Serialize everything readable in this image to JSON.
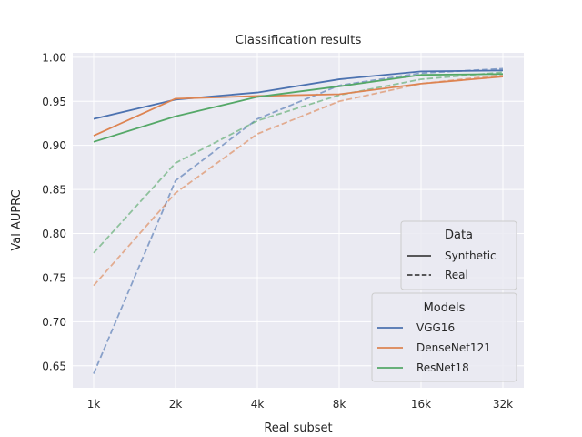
{
  "chart_data": {
    "type": "line",
    "title": "Classification results",
    "xlabel": "Real subset",
    "ylabel": "Val AUPRC",
    "categories": [
      "1k",
      "2k",
      "4k",
      "8k",
      "16k",
      "32k"
    ],
    "ylim": [
      0.625,
      1.005
    ],
    "yticks": [
      0.65,
      0.7,
      0.75,
      0.8,
      0.85,
      0.9,
      0.95,
      1.0
    ],
    "ytick_labels": [
      "0.65",
      "0.70",
      "0.75",
      "0.80",
      "0.85",
      "0.90",
      "0.95",
      "1.00"
    ],
    "grid": true,
    "series": [
      {
        "name": "VGG16",
        "data": "Synthetic",
        "color": "#4c72b0",
        "dashed": false,
        "values": [
          0.93,
          0.952,
          0.96,
          0.975,
          0.984,
          0.985
        ]
      },
      {
        "name": "DenseNet121",
        "data": "Synthetic",
        "color": "#dd8452",
        "dashed": false,
        "values": [
          0.911,
          0.953,
          0.956,
          0.958,
          0.97,
          0.978
        ]
      },
      {
        "name": "ResNet18",
        "data": "Synthetic",
        "color": "#55a868",
        "dashed": false,
        "values": [
          0.904,
          0.933,
          0.955,
          0.967,
          0.98,
          0.981
        ]
      },
      {
        "name": "VGG16",
        "data": "Real",
        "color": "#4c72b0",
        "dashed": true,
        "values": [
          0.641,
          0.86,
          0.93,
          0.968,
          0.982,
          0.987
        ]
      },
      {
        "name": "DenseNet121",
        "data": "Real",
        "color": "#dd8452",
        "dashed": true,
        "values": [
          0.741,
          0.846,
          0.913,
          0.95,
          0.97,
          0.98
        ]
      },
      {
        "name": "ResNet18",
        "data": "Real",
        "color": "#55a868",
        "dashed": true,
        "values": [
          0.778,
          0.88,
          0.928,
          0.957,
          0.975,
          0.983
        ]
      }
    ],
    "legends": [
      {
        "title": "Data",
        "position": "right",
        "entries": [
          {
            "label": "Synthetic",
            "style": "solid",
            "color": "#262626"
          },
          {
            "label": "Real",
            "style": "dashed",
            "color": "#262626"
          }
        ]
      },
      {
        "title": "Models",
        "position": "lower-right",
        "entries": [
          {
            "label": "VGG16",
            "style": "solid",
            "color": "#4c72b0"
          },
          {
            "label": "DenseNet121",
            "style": "solid",
            "color": "#dd8452"
          },
          {
            "label": "ResNet18",
            "style": "solid",
            "color": "#55a868"
          }
        ]
      }
    ]
  }
}
